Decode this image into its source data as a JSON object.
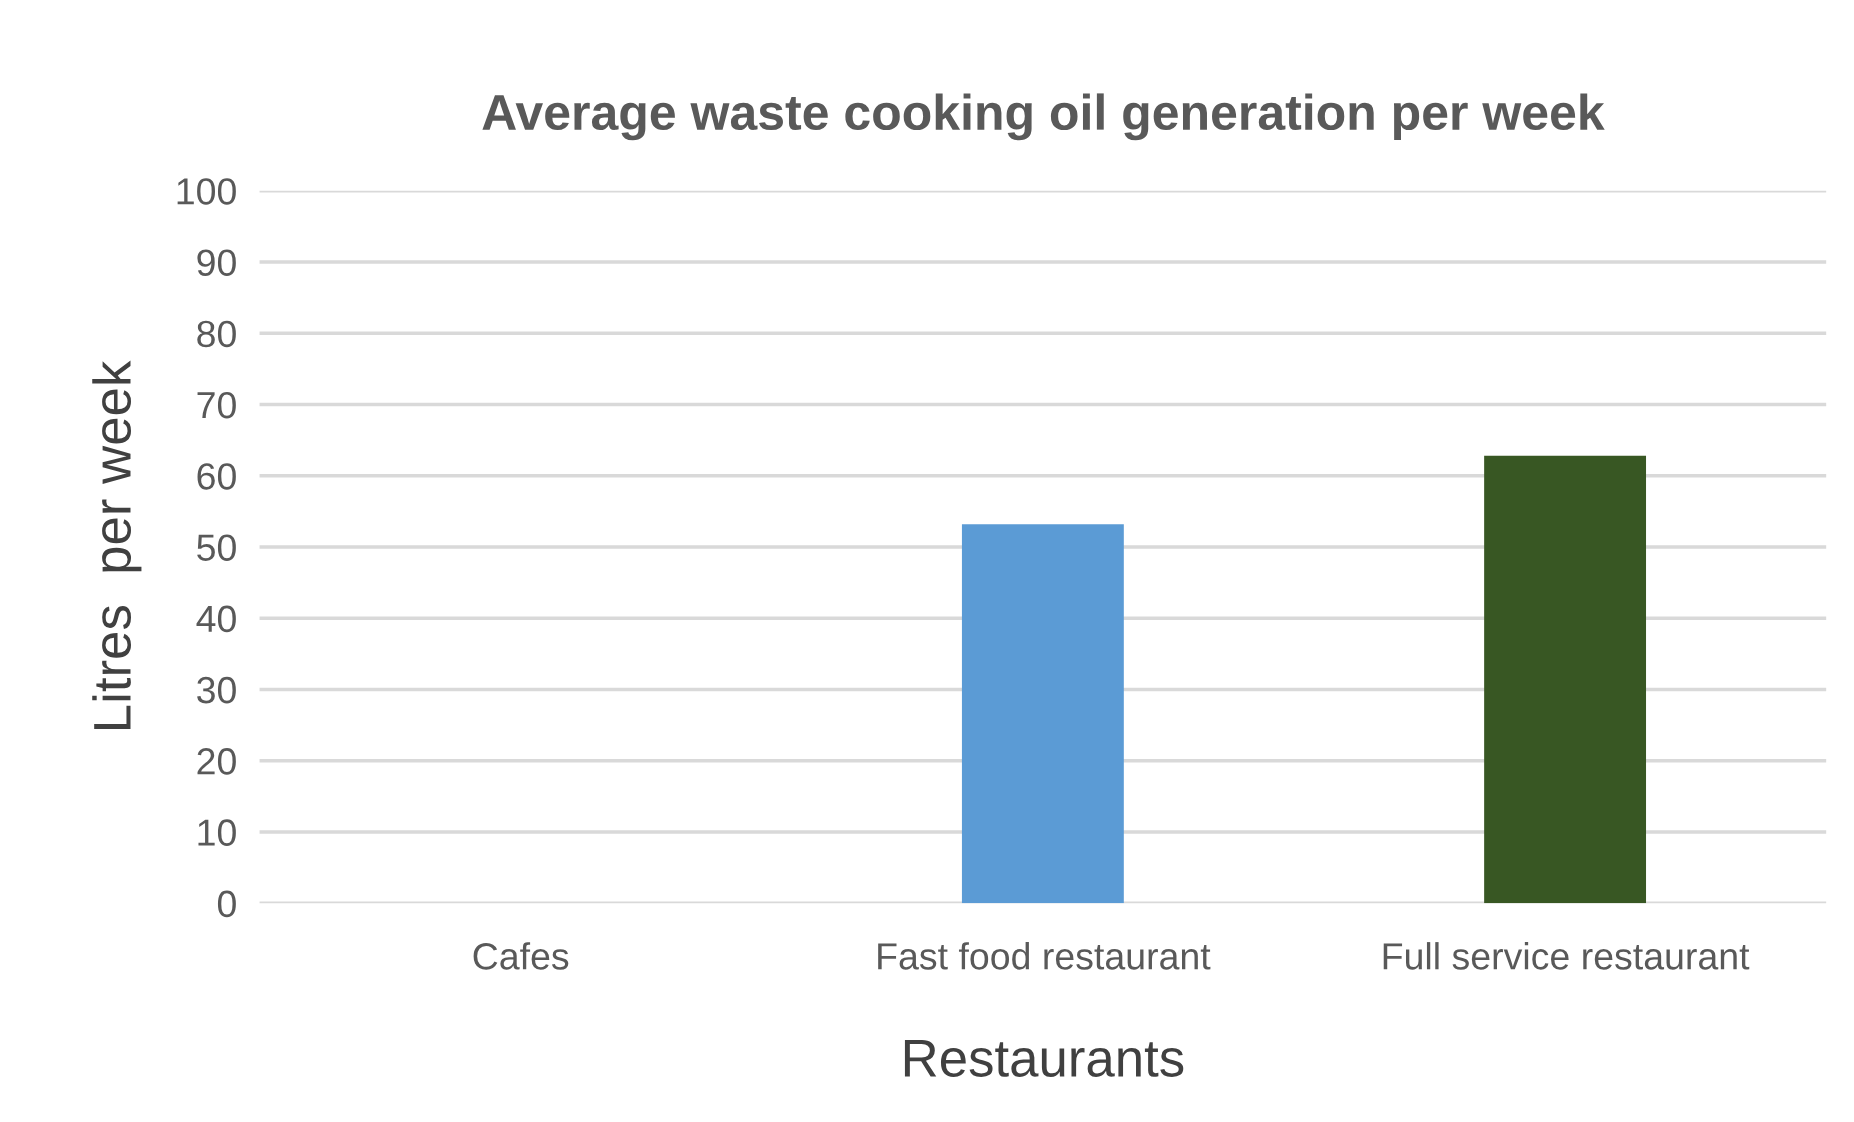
{
  "chart_data": {
    "type": "bar",
    "title": "Average waste cooking oil generation per week",
    "xlabel": "Restaurants",
    "ylabel": "Litres  per week",
    "categories": [
      "Cafes",
      "Fast food restaurant",
      "Full service restaurant"
    ],
    "values": [
      0,
      53.2,
      62.8
    ],
    "colors": [
      "#5b9bd5",
      "#5b9bd5",
      "#385723"
    ],
    "ylim": [
      0,
      100
    ],
    "yticks": [
      0,
      10,
      20,
      30,
      40,
      50,
      60,
      70,
      80,
      90,
      100
    ],
    "grid": "y",
    "legend": false
  }
}
